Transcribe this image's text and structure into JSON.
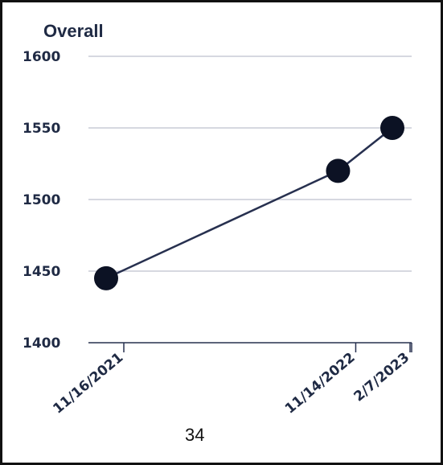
{
  "chart_data": {
    "type": "line",
    "title": "Overall",
    "x": [
      "11/16/2021",
      "11/14/2022",
      "2/7/2023"
    ],
    "x_days": [
      0,
      363,
      448
    ],
    "series": [
      {
        "values": [
          1445,
          1520,
          1550
        ]
      }
    ],
    "ylim": [
      1400,
      1600
    ],
    "yticks": [
      1400,
      1450,
      1500,
      1550,
      1600
    ],
    "grid": "horizontal",
    "colors": {
      "line": "#27304f",
      "marker": "#0c1224",
      "grid": "#c9ccd6",
      "axis": "#27304f"
    }
  },
  "footer": {
    "page_number": "34"
  }
}
